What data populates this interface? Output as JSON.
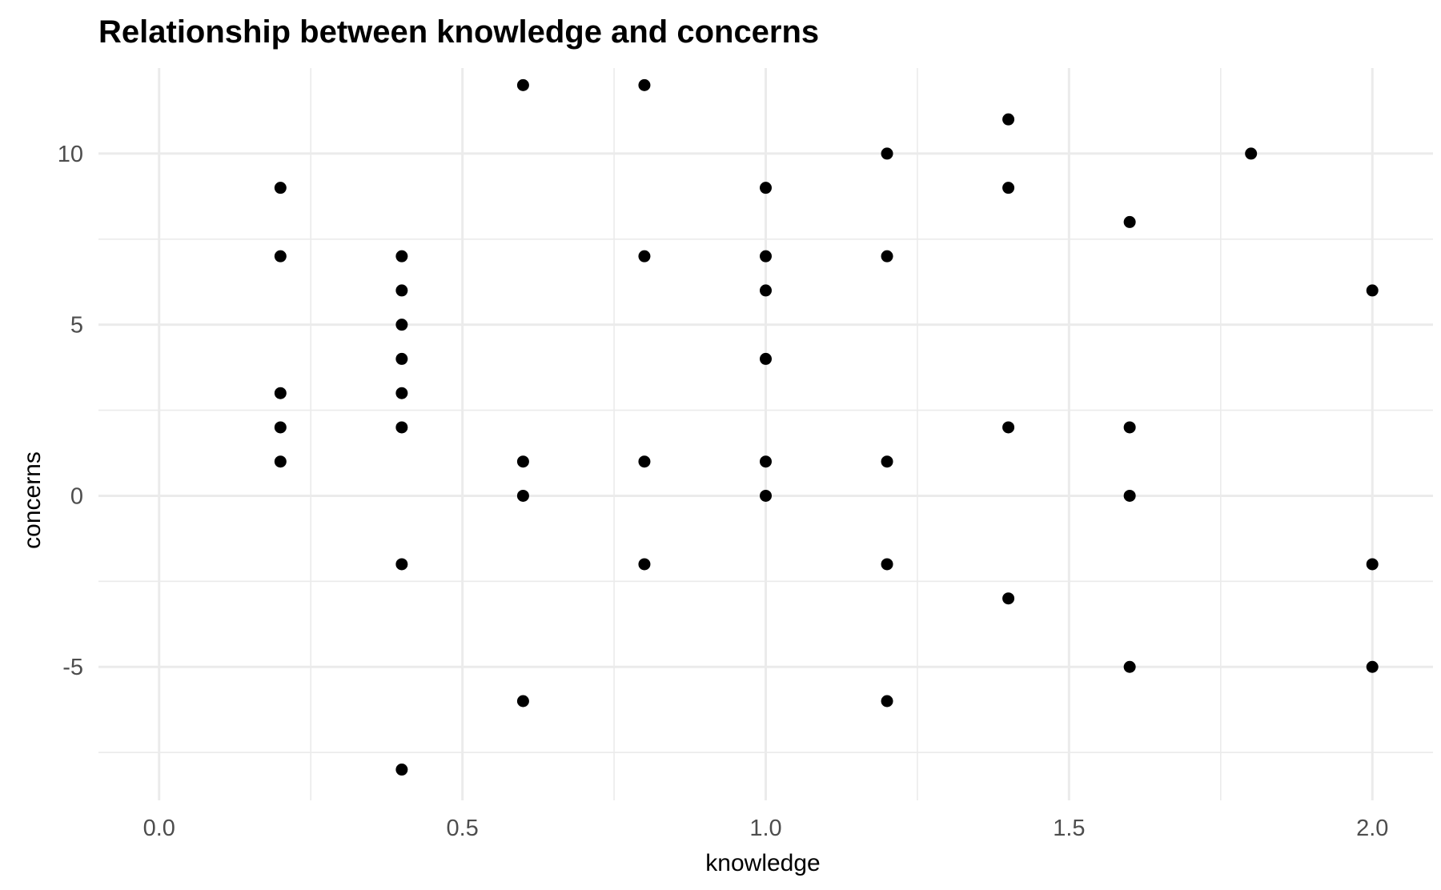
{
  "chart_data": {
    "type": "scatter",
    "title": "Relationship between knowledge and concerns",
    "xlabel": "knowledge",
    "ylabel": "concerns",
    "xlim": [
      -0.1,
      2.1
    ],
    "ylim": [
      -8.9,
      12.5
    ],
    "x_ticks": [
      0.0,
      0.5,
      1.0,
      1.5,
      2.0
    ],
    "x_tick_labels": [
      "0.0",
      "0.5",
      "1.0",
      "1.5",
      "2.0"
    ],
    "y_ticks": [
      -5,
      0,
      5,
      10
    ],
    "y_tick_labels": [
      "-5",
      "0",
      "5",
      "10"
    ],
    "grid": true,
    "legend": "none",
    "point_color": "#000000",
    "points": [
      {
        "x": 0.2,
        "y": 9
      },
      {
        "x": 0.2,
        "y": 7
      },
      {
        "x": 0.2,
        "y": 3
      },
      {
        "x": 0.2,
        "y": 2
      },
      {
        "x": 0.2,
        "y": 1
      },
      {
        "x": 0.4,
        "y": 7
      },
      {
        "x": 0.4,
        "y": 6
      },
      {
        "x": 0.4,
        "y": 5
      },
      {
        "x": 0.4,
        "y": 4
      },
      {
        "x": 0.4,
        "y": 3
      },
      {
        "x": 0.4,
        "y": 2
      },
      {
        "x": 0.4,
        "y": -2
      },
      {
        "x": 0.4,
        "y": -8
      },
      {
        "x": 0.6,
        "y": 12
      },
      {
        "x": 0.6,
        "y": 1
      },
      {
        "x": 0.6,
        "y": 0
      },
      {
        "x": 0.6,
        "y": -6
      },
      {
        "x": 0.8,
        "y": 12
      },
      {
        "x": 0.8,
        "y": 7
      },
      {
        "x": 0.8,
        "y": 1
      },
      {
        "x": 0.8,
        "y": -2
      },
      {
        "x": 1.0,
        "y": 9
      },
      {
        "x": 1.0,
        "y": 7
      },
      {
        "x": 1.0,
        "y": 6
      },
      {
        "x": 1.0,
        "y": 4
      },
      {
        "x": 1.0,
        "y": 1
      },
      {
        "x": 1.0,
        "y": 0
      },
      {
        "x": 1.2,
        "y": 10
      },
      {
        "x": 1.2,
        "y": 7
      },
      {
        "x": 1.2,
        "y": 1
      },
      {
        "x": 1.2,
        "y": -2
      },
      {
        "x": 1.2,
        "y": -6
      },
      {
        "x": 1.4,
        "y": 11
      },
      {
        "x": 1.4,
        "y": 9
      },
      {
        "x": 1.4,
        "y": 2
      },
      {
        "x": 1.4,
        "y": -3
      },
      {
        "x": 1.6,
        "y": 8
      },
      {
        "x": 1.6,
        "y": 2
      },
      {
        "x": 1.6,
        "y": 0
      },
      {
        "x": 1.6,
        "y": -5
      },
      {
        "x": 1.8,
        "y": 10
      },
      {
        "x": 2.0,
        "y": 6
      },
      {
        "x": 2.0,
        "y": -2
      },
      {
        "x": 2.0,
        "y": -5
      }
    ]
  }
}
